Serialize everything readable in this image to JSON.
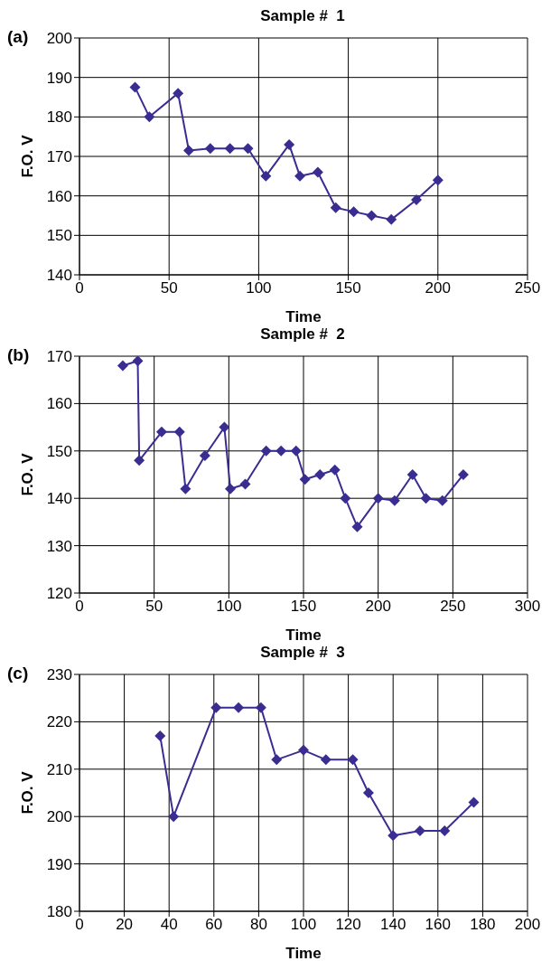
{
  "chart_data": [
    {
      "type": "line",
      "title": "Sample #  1",
      "xlabel": "Time",
      "ylabel": "F.O. V",
      "annotations": [
        "(a)"
      ],
      "xlim": [
        0,
        250
      ],
      "xticks": [
        0,
        50,
        100,
        150,
        200,
        250
      ],
      "ylim": [
        140,
        200
      ],
      "yticks": [
        140,
        150,
        160,
        170,
        180,
        190,
        200
      ],
      "grid": true,
      "marker": "diamond",
      "legend": false,
      "series": [
        {
          "color": "#3a2d91",
          "x": [
            31,
            39,
            55,
            61,
            73,
            84,
            94,
            104,
            117,
            123,
            133,
            143,
            153,
            163,
            174,
            188,
            200
          ],
          "values": [
            187.5,
            180,
            186,
            171.5,
            172,
            172,
            172,
            165,
            173,
            165,
            166,
            157,
            156,
            155,
            154,
            159,
            164
          ]
        }
      ]
    },
    {
      "type": "line",
      "title": "Sample #  2",
      "xlabel": "Time",
      "ylabel": "F.O. V",
      "annotations": [
        "(b)"
      ],
      "xlim": [
        0,
        300
      ],
      "xticks": [
        0,
        50,
        100,
        150,
        200,
        250,
        300
      ],
      "ylim": [
        120,
        170
      ],
      "yticks": [
        120,
        130,
        140,
        150,
        160,
        170
      ],
      "grid": true,
      "marker": "diamond",
      "legend": false,
      "series": [
        {
          "color": "#3a2d91",
          "x": [
            29,
            39,
            40,
            55,
            67,
            71,
            84,
            97,
            101,
            111,
            125,
            135,
            145,
            151,
            161,
            171,
            178,
            186,
            200,
            211,
            223,
            232,
            243,
            257
          ],
          "values": [
            168,
            169,
            148,
            154,
            154,
            142,
            149,
            155,
            142,
            143,
            150,
            150,
            150,
            144,
            145,
            146,
            140,
            134,
            140,
            139.5,
            145,
            140,
            139.5,
            145
          ]
        }
      ]
    },
    {
      "type": "line",
      "title": "Sample #  3",
      "xlabel": "Time",
      "ylabel": "F.O. V",
      "annotations": [
        "(c)"
      ],
      "xlim": [
        0,
        200
      ],
      "xticks": [
        0,
        20,
        40,
        60,
        80,
        100,
        120,
        140,
        160,
        180,
        200
      ],
      "ylim": [
        180,
        230
      ],
      "yticks": [
        180,
        190,
        200,
        210,
        220,
        230
      ],
      "grid": true,
      "marker": "diamond",
      "legend": false,
      "series": [
        {
          "color": "#3a2d91",
          "x": [
            36,
            42,
            61,
            71,
            81,
            88,
            100,
            110,
            122,
            129,
            140,
            152,
            163,
            176
          ],
          "values": [
            217,
            200,
            223,
            223,
            223,
            212,
            214,
            212,
            212,
            205,
            196,
            197,
            197,
            203
          ]
        }
      ]
    }
  ]
}
